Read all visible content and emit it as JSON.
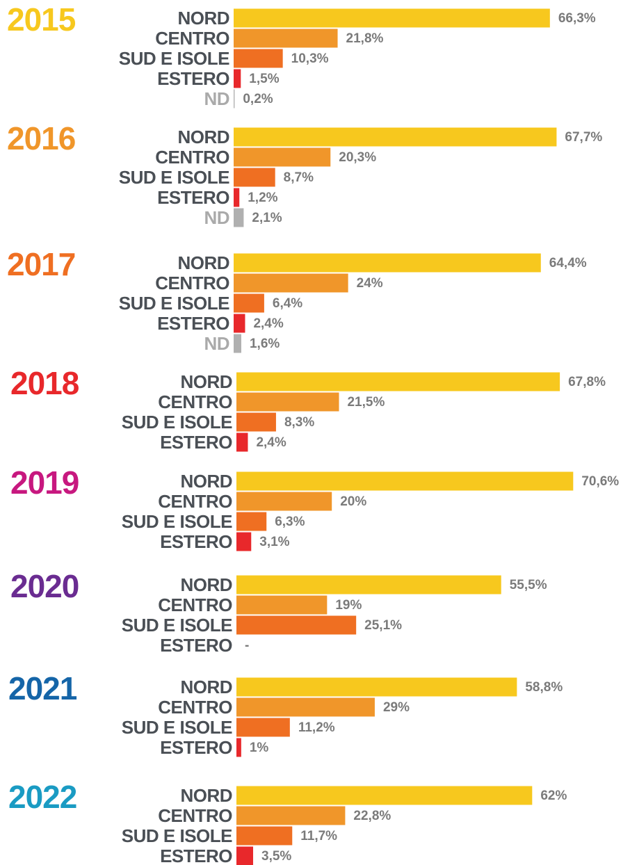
{
  "chart_data": [
    {
      "type": "bar",
      "title": "2015",
      "title_color": "#f7c81e",
      "categories": [
        "NORD",
        "CENTRO",
        "SUD E ISOLE",
        "ESTERO",
        "ND"
      ],
      "values": [
        66.3,
        21.8,
        10.3,
        1.5,
        0.2
      ],
      "value_labels": [
        "66,3%",
        "21,8%",
        "10,3%",
        "1,5%",
        "0,2%"
      ],
      "colors": [
        "#f7c81e",
        "#f0962a",
        "#ef6f22",
        "#e8282b",
        "#b0b0b0"
      ]
    },
    {
      "type": "bar",
      "title": "2016",
      "title_color": "#f0962a",
      "categories": [
        "NORD",
        "CENTRO",
        "SUD E ISOLE",
        "ESTERO",
        "ND"
      ],
      "values": [
        67.7,
        20.3,
        8.7,
        1.2,
        2.1
      ],
      "value_labels": [
        "67,7%",
        "20,3%",
        "8,7%",
        "1,2%",
        "2,1%"
      ],
      "colors": [
        "#f7c81e",
        "#f0962a",
        "#ef6f22",
        "#e8282b",
        "#b0b0b0"
      ]
    },
    {
      "type": "bar",
      "title": "2017",
      "title_color": "#ef6f22",
      "categories": [
        "NORD",
        "CENTRO",
        "SUD E ISOLE",
        "ESTERO",
        "ND"
      ],
      "values": [
        64.4,
        24,
        6.4,
        2.4,
        1.6
      ],
      "value_labels": [
        "64,4%",
        "24%",
        "6,4%",
        "2,4%",
        "1,6%"
      ],
      "colors": [
        "#f7c81e",
        "#f0962a",
        "#ef6f22",
        "#e8282b",
        "#b0b0b0"
      ]
    },
    {
      "type": "bar",
      "title": "2018",
      "title_color": "#e8282b",
      "categories": [
        "NORD",
        "CENTRO",
        "SUD E ISOLE",
        "ESTERO"
      ],
      "values": [
        67.8,
        21.5,
        8.3,
        2.4
      ],
      "value_labels": [
        "67,8%",
        "21,5%",
        "8,3%",
        "2,4%"
      ],
      "colors": [
        "#f7c81e",
        "#f0962a",
        "#ef6f22",
        "#e8282b"
      ]
    },
    {
      "type": "bar",
      "title": "2019",
      "title_color": "#c7187f",
      "categories": [
        "NORD",
        "CENTRO",
        "SUD E ISOLE",
        "ESTERO"
      ],
      "values": [
        70.6,
        20,
        6.3,
        3.1
      ],
      "value_labels": [
        "70,6%",
        "20%",
        "6,3%",
        "3,1%"
      ],
      "colors": [
        "#f7c81e",
        "#f0962a",
        "#ef6f22",
        "#e8282b"
      ]
    },
    {
      "type": "bar",
      "title": "2020",
      "title_color": "#6a2c91",
      "categories": [
        "NORD",
        "CENTRO",
        "SUD E ISOLE",
        "ESTERO"
      ],
      "values": [
        55.5,
        19,
        25.1,
        null
      ],
      "value_labels": [
        "55,5%",
        "19%",
        "25,1%",
        "-"
      ],
      "colors": [
        "#f7c81e",
        "#f0962a",
        "#ef6f22",
        "#e8282b"
      ]
    },
    {
      "type": "bar",
      "title": "2021",
      "title_color": "#1565a8",
      "categories": [
        "NORD",
        "CENTRO",
        "SUD E ISOLE",
        "ESTERO"
      ],
      "values": [
        58.8,
        29,
        11.2,
        1
      ],
      "value_labels": [
        "58,8%",
        "29%",
        "11,2%",
        "1%"
      ],
      "colors": [
        "#f7c81e",
        "#f0962a",
        "#ef6f22",
        "#e8282b"
      ]
    },
    {
      "type": "bar",
      "title": "2022",
      "title_color": "#1a9bc3",
      "categories": [
        "NORD",
        "CENTRO",
        "SUD E ISOLE",
        "ESTERO"
      ],
      "values": [
        62,
        22.8,
        11.7,
        3.5
      ],
      "value_labels": [
        "62%",
        "22,8%",
        "11,7%",
        "3,5%"
      ],
      "colors": [
        "#f7c81e",
        "#f0962a",
        "#ef6f22",
        "#e8282b"
      ]
    }
  ]
}
